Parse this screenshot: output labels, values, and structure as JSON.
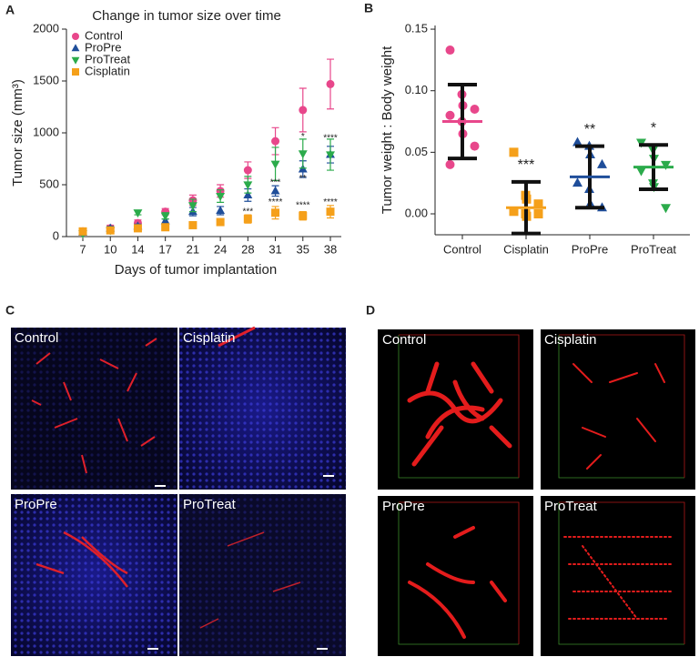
{
  "chart_data": [
    {
      "type": "line",
      "panel": "A",
      "title": "Change in tumor size over time",
      "x_label": "Days of tumor implantation",
      "y_label": "Tumor size (mm³)",
      "categories": [
        "7",
        "10",
        "14",
        "17",
        "21",
        "24",
        "28",
        "31",
        "35",
        "38"
      ],
      "ylim": [
        0,
        2000
      ],
      "yticks": [
        0,
        500,
        1000,
        1500,
        2000
      ],
      "legend": "upper-left",
      "series": [
        {
          "name": "Control",
          "color": "#e8478b",
          "marker": "circle",
          "values": [
            50,
            80,
            130,
            240,
            350,
            440,
            640,
            920,
            1220,
            1470
          ],
          "errors": [
            20,
            30,
            30,
            30,
            50,
            60,
            80,
            130,
            210,
            240
          ]
        },
        {
          "name": "ProPre",
          "color": "#1f4e9a",
          "marker": "triangle-up",
          "values": [
            40,
            80,
            100,
            150,
            240,
            250,
            400,
            440,
            650,
            790
          ],
          "errors": [
            10,
            20,
            20,
            20,
            40,
            40,
            60,
            50,
            80,
            80
          ]
        },
        {
          "name": "ProTreat",
          "color": "#2bab4b",
          "marker": "triangle-down",
          "values": [
            30,
            60,
            230,
            200,
            300,
            390,
            500,
            700,
            800,
            790
          ],
          "errors": [
            10,
            20,
            20,
            30,
            60,
            60,
            80,
            160,
            140,
            150
          ]
        },
        {
          "name": "Cisplatin",
          "color": "#f5a01a",
          "marker": "square",
          "values": [
            50,
            60,
            80,
            90,
            110,
            140,
            170,
            230,
            200,
            240
          ],
          "errors": [
            10,
            20,
            20,
            20,
            20,
            30,
            40,
            60,
            40,
            60
          ]
        }
      ],
      "annotations": [
        {
          "text": "***",
          "category": "28",
          "y": 240
        },
        {
          "text": "***",
          "category": "31",
          "y": 520
        },
        {
          "text": "****",
          "category": "31",
          "y": 330
        },
        {
          "text": "*",
          "category": "35",
          "y": 960
        },
        {
          "text": "**",
          "category": "35",
          "y": 560
        },
        {
          "text": "****",
          "category": "35",
          "y": 300
        },
        {
          "text": "****",
          "category": "38",
          "y": 950
        },
        {
          "text": "****",
          "category": "38",
          "y": 330
        }
      ]
    },
    {
      "type": "dot",
      "panel": "B",
      "y_label": "Tumor weight : Body weight",
      "categories": [
        "Control",
        "Cisplatin",
        "ProPre",
        "ProTreat"
      ],
      "ylim": [
        -0.017,
        0.153
      ],
      "yticks": [
        {
          "value": 0,
          "label": "0.00"
        },
        0.05,
        {
          "value": 0.1,
          "label": "0.10"
        },
        0.15
      ],
      "groups": [
        {
          "color": "#e8478b",
          "marker": "circle",
          "values": [
            0.133,
            0.097,
            0.088,
            0.085,
            0.08,
            0.075,
            0.065,
            0.055,
            0.04
          ],
          "mean": 0.075,
          "sd": 0.03
        },
        {
          "color": "#f5a01a",
          "marker": "square",
          "values": [
            0.05,
            0.015,
            0.012,
            0.008,
            0.002,
            0,
            -0.002,
            0
          ],
          "mean": 0.005,
          "sd": 0.021
        },
        {
          "color": "#1f4e9a",
          "marker": "triangle-up",
          "values": [
            0.058,
            0.055,
            0.048,
            0.04,
            0.025,
            0.02,
            0.008,
            0.005
          ],
          "mean": 0.03,
          "sd": 0.025
        },
        {
          "color": "#2bab4b",
          "marker": "triangle-down",
          "values": [
            0.058,
            0.052,
            0.045,
            0.04,
            0.035,
            0.025,
            0.022,
            0.005
          ],
          "mean": 0.038,
          "sd": 0.018
        }
      ],
      "annotations": [
        null,
        "***",
        "**",
        "*"
      ]
    }
  ],
  "images": [
    {
      "panel": "C",
      "labels": [
        "Control",
        "Cisplatin",
        "ProPre",
        "ProTreat"
      ]
    },
    {
      "panel": "D",
      "labels": [
        "Control",
        "Cisplatin",
        "ProPre",
        "ProTreat"
      ]
    }
  ]
}
